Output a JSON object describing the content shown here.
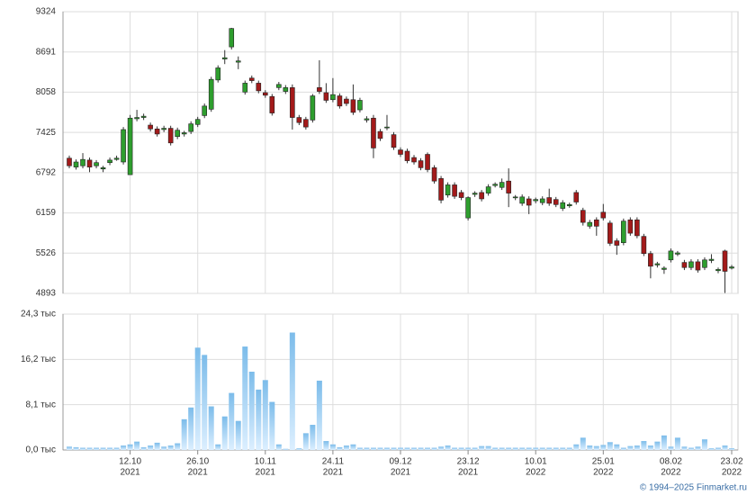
{
  "chart_data": {
    "type": "candlestick",
    "ylim": [
      4893,
      9324
    ],
    "yticks": [
      4893,
      5526,
      6159,
      6792,
      7425,
      8058,
      8691,
      9324
    ],
    "y2lim": [
      0,
      24.3
    ],
    "y2ticks": [
      {
        "value": 0,
        "label": "0,0 тыс"
      },
      {
        "value": 8.1,
        "label": "8,1 тыс"
      },
      {
        "value": 16.2,
        "label": "16,2 тыс"
      },
      {
        "value": 24.3,
        "label": "24,3 тыс"
      }
    ],
    "xticks": [
      {
        "value": 9,
        "label": "12.10",
        "sublabel": "2021"
      },
      {
        "value": 19,
        "label": "26.10",
        "sublabel": "2021"
      },
      {
        "value": 29,
        "label": "10.11",
        "sublabel": "2021"
      },
      {
        "value": 39,
        "label": "24.11",
        "sublabel": "2021"
      },
      {
        "value": 49,
        "label": "09.12",
        "sublabel": "2021"
      },
      {
        "value": 59,
        "label": "23.12",
        "sublabel": "2021"
      },
      {
        "value": 69,
        "label": "10.01",
        "sublabel": "2022"
      },
      {
        "value": 79,
        "label": "25.01",
        "sublabel": "2022"
      },
      {
        "value": 89,
        "label": "08.02",
        "sublabel": "2022"
      },
      {
        "value": 98,
        "label": "23.02",
        "sublabel": "2022"
      }
    ],
    "grid": true,
    "up_color": "#2e9e2e",
    "down_color": "#a31a1a",
    "volume_color": "#7cbcea",
    "open": [
      7020,
      6880,
      6900,
      6990,
      6900,
      6850,
      6950,
      7000,
      6960,
      6760,
      7640,
      7660,
      7540,
      7480,
      7470,
      7490,
      7360,
      7400,
      7440,
      7550,
      7690,
      7790,
      8250,
      8580,
      8770,
      8530,
      8060,
      8280,
      8200,
      8050,
      7990,
      8130,
      8070,
      8130,
      7660,
      7630,
      7620,
      8130,
      8050,
      7940,
      8000,
      7950,
      7940,
      7780,
      7620,
      7650,
      7440,
      7500,
      7390,
      7150,
      7130,
      7030,
      6980,
      7080,
      6870,
      6700,
      6440,
      6600,
      6480,
      6080,
      6450,
      6480,
      6470,
      6590,
      6560,
      6660,
      6400,
      6310,
      6380,
      6350,
      6320,
      6400,
      6370,
      6230,
      6270,
      6480,
      6200,
      5950,
      6050,
      6170,
      6000,
      5720,
      5690,
      6050,
      6050,
      5790,
      5520,
      5340,
      5270,
      5420,
      5510,
      5380,
      5300,
      5390,
      5300,
      5410,
      5250,
      5560,
      5290
    ],
    "high": [
      7060,
      7000,
      7100,
      7030,
      6990,
      6900,
      7030,
      7060,
      7510,
      7700,
      7780,
      7720,
      7580,
      7520,
      7530,
      7530,
      7500,
      7450,
      7600,
      7670,
      7880,
      8300,
      8480,
      8720,
      9070,
      8620,
      8240,
      8320,
      8240,
      8090,
      8030,
      8220,
      8170,
      8180,
      7700,
      7670,
      8030,
      8560,
      8200,
      8280,
      8040,
      7990,
      8180,
      7970,
      7680,
      7700,
      7480,
      7700,
      7430,
      7190,
      7170,
      7070,
      7020,
      7110,
      6910,
      6740,
      6640,
      6640,
      6520,
      6420,
      6500,
      6520,
      6610,
      6640,
      6700,
      6860,
      6440,
      6450,
      6420,
      6400,
      6420,
      6540,
      6410,
      6360,
      6320,
      6520,
      6240,
      6050,
      6090,
      6300,
      6040,
      5760,
      6070,
      6090,
      6090,
      5830,
      5560,
      5390,
      5320,
      5600,
      5560,
      5420,
      5430,
      5430,
      5460,
      5510,
      5300,
      5580,
      5340
    ],
    "low": [
      6860,
      6840,
      6860,
      6800,
      6860,
      6800,
      6910,
      6980,
      6920,
      6760,
      7600,
      7620,
      7440,
      7360,
      7430,
      7220,
      7320,
      7360,
      7400,
      7510,
      7650,
      7750,
      8210,
      8500,
      8730,
      8420,
      8020,
      8200,
      8040,
      7970,
      7690,
      8090,
      8030,
      7470,
      7540,
      7470,
      7580,
      8030,
      7890,
      7900,
      7800,
      7840,
      7700,
      7740,
      7580,
      7020,
      7290,
      7460,
      7150,
      7040,
      6940,
      6920,
      6830,
      6800,
      6620,
      6310,
      6400,
      6380,
      6360,
      6040,
      6410,
      6340,
      6430,
      6560,
      6520,
      6250,
      6360,
      6270,
      6140,
      6310,
      6280,
      6270,
      6250,
      6190,
      6240,
      6290,
      5960,
      5910,
      5800,
      6040,
      5640,
      5500,
      5650,
      5800,
      5760,
      5480,
      5130,
      5300,
      5200,
      5380,
      5480,
      5260,
      5260,
      5220,
      5260,
      5370,
      5210,
      4900,
      5270
    ],
    "close": [
      6900,
      6960,
      7000,
      6880,
      6950,
      6870,
      6990,
      7020,
      7470,
      7650,
      7660,
      7680,
      7480,
      7400,
      7490,
      7260,
      7460,
      7420,
      7560,
      7630,
      7840,
      8260,
      8440,
      8600,
      9060,
      8550,
      8200,
      8240,
      8080,
      8010,
      7730,
      8180,
      8130,
      7660,
      7580,
      7510,
      8000,
      8070,
      7930,
      8020,
      7840,
      7880,
      7740,
      7930,
      7640,
      7180,
      7330,
      7510,
      7190,
      7080,
      6980,
      6960,
      6870,
      6840,
      6660,
      6360,
      6600,
      6420,
      6400,
      6400,
      6470,
      6380,
      6570,
      6610,
      6640,
      6470,
      6410,
      6410,
      6280,
      6370,
      6380,
      6310,
      6290,
      6320,
      6290,
      6330,
      6010,
      6010,
      5950,
      6080,
      5680,
      5650,
      6030,
      5840,
      5800,
      5520,
      5320,
      5360,
      5290,
      5560,
      5530,
      5300,
      5390,
      5260,
      5420,
      5430,
      5270,
      5240,
      5310
    ],
    "volume": [
      0.6,
      0.5,
      0.4,
      0.4,
      0.4,
      0.4,
      0.4,
      0.4,
      0.8,
      1.0,
      1.5,
      0.5,
      0.8,
      1.3,
      0.6,
      0.8,
      1.2,
      5.5,
      7.6,
      18.3,
      17.0,
      7.8,
      1.0,
      6.0,
      10.2,
      5.2,
      18.5,
      14.0,
      10.8,
      12.5,
      8.6,
      1.0,
      0.2,
      21.0,
      0.3,
      3.0,
      4.5,
      12.4,
      1.6,
      1.0,
      0.5,
      0.8,
      1.0,
      0.4,
      0.4,
      0.4,
      0.4,
      0.4,
      0.4,
      0.4,
      0.4,
      0.4,
      0.4,
      0.4,
      0.4,
      0.6,
      0.8,
      0.4,
      0.4,
      0.4,
      0.4,
      0.7,
      0.7,
      0.4,
      0.4,
      0.4,
      0.4,
      0.4,
      0.4,
      0.4,
      0.4,
      0.4,
      0.4,
      0.4,
      0.4,
      1.0,
      2.2,
      0.8,
      0.7,
      0.9,
      1.4,
      1.0,
      0.4,
      0.7,
      0.8,
      1.6,
      0.8,
      1.5,
      2.6,
      0.6,
      2.2,
      0.6,
      0.4,
      0.6,
      1.9,
      0.3,
      0.4,
      0.8,
      0.3
    ]
  },
  "footer": "© 1994–2025 Finmarket.ru"
}
